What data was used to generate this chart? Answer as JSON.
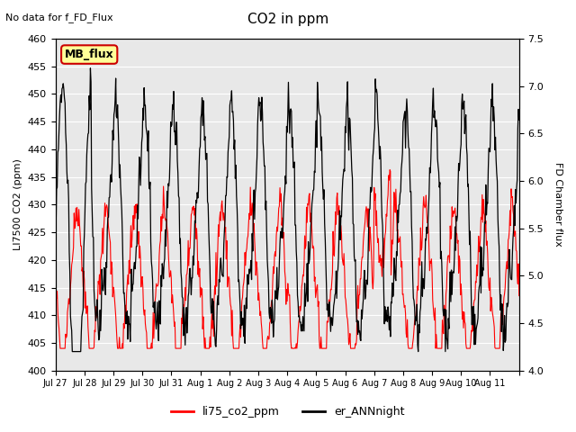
{
  "title": "CO2 in ppm",
  "top_left_text": "No data for f_FD_Flux",
  "ylabel_left": "LI7500 CO2 (ppm)",
  "ylabel_right": "FD Chamber flux",
  "ylim_left": [
    400,
    460
  ],
  "ylim_right": [
    4.0,
    7.5
  ],
  "yticks_left": [
    400,
    405,
    410,
    415,
    420,
    425,
    430,
    435,
    440,
    445,
    450,
    455,
    460
  ],
  "yticks_right": [
    4.0,
    4.5,
    5.0,
    5.5,
    6.0,
    6.5,
    7.0,
    7.5
  ],
  "xtick_positions": [
    0,
    1,
    2,
    3,
    4,
    5,
    6,
    7,
    8,
    9,
    10,
    11,
    12,
    13,
    14,
    15,
    16
  ],
  "xtick_labels": [
    "Jul 27",
    "Jul 28",
    "Jul 29",
    "Jul 30",
    "Jul 31",
    "Aug 1",
    "Aug 2",
    "Aug 3",
    "Aug 4",
    "Aug 5",
    "Aug 6",
    "Aug 7",
    "Aug 8",
    "Aug 9",
    "Aug 10",
    "Aug 11",
    ""
  ],
  "line_red_color": "#FF0000",
  "line_black_color": "#000000",
  "plot_bg_color": "#E8E8E8",
  "legend_label_red": "li75_co2_ppm",
  "legend_label_black": "er_ANNnight",
  "mb_flux_label": "MB_flux",
  "mb_flux_box_color": "#FFFF99",
  "mb_flux_border_color": "#CC0000"
}
